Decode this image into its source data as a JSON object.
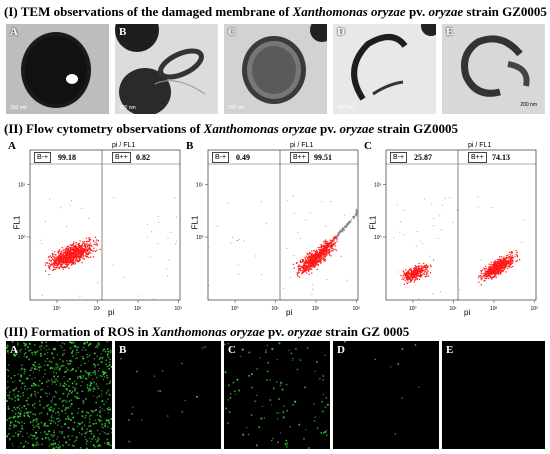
{
  "section1": {
    "heading_prefix": "(I) TEM observations of the damaged membrane of ",
    "heading_italic": "Xanthomonas oryzae",
    "heading_mid": " pv. ",
    "heading_italic2": "oryzae",
    "heading_suffix": " strain GZ0005",
    "panels": [
      {
        "label": "A",
        "scale": "200 nm"
      },
      {
        "label": "B",
        "scale": "200 nm"
      },
      {
        "label": "C",
        "scale": "200 nm"
      },
      {
        "label": "D",
        "scale": "200 nm"
      },
      {
        "label": "E",
        "scale": "200 nm"
      }
    ]
  },
  "section2": {
    "heading_prefix": "(II) Flow cytometry observations of ",
    "heading_italic": "Xanthomonas oryzae",
    "heading_mid": " pv. ",
    "heading_italic2": "oryzae",
    "heading_suffix": " strain GZ0005",
    "plot_title": "pi / FL1",
    "xlabel": "pi",
    "ylabel": "FL1",
    "xticks": [
      "10⁰",
      "10¹",
      "10²",
      "10³"
    ],
    "yticks": [
      "10⁰",
      "10¹"
    ],
    "quadrant_left": "B-+",
    "quadrant_right": "B++",
    "panels": [
      {
        "label": "A",
        "left_value": "99.18",
        "right_value": "0.82"
      },
      {
        "label": "B",
        "left_value": "0.49",
        "right_value": "99.51"
      },
      {
        "label": "C",
        "left_value": "25.87",
        "right_value": "74.13"
      }
    ]
  },
  "section3": {
    "heading_prefix": "(III) Formation of ROS in ",
    "heading_italic": "Xanthomonas oryzae",
    "heading_mid": " pv. ",
    "heading_italic2": "oryzae",
    "heading_suffix": " strain GZ 0005",
    "panels": [
      {
        "label": "A",
        "dot_density": 0.9
      },
      {
        "label": "B",
        "dot_density": 0.02
      },
      {
        "label": "C",
        "dot_density": 0.12
      },
      {
        "label": "D",
        "dot_density": 0.01
      },
      {
        "label": "E",
        "dot_density": 0.0
      }
    ]
  },
  "colors": {
    "scatter_red": "#ff1a1a",
    "scatter_gray": "#8a8a8a",
    "ros_green": "#3bd13b"
  }
}
